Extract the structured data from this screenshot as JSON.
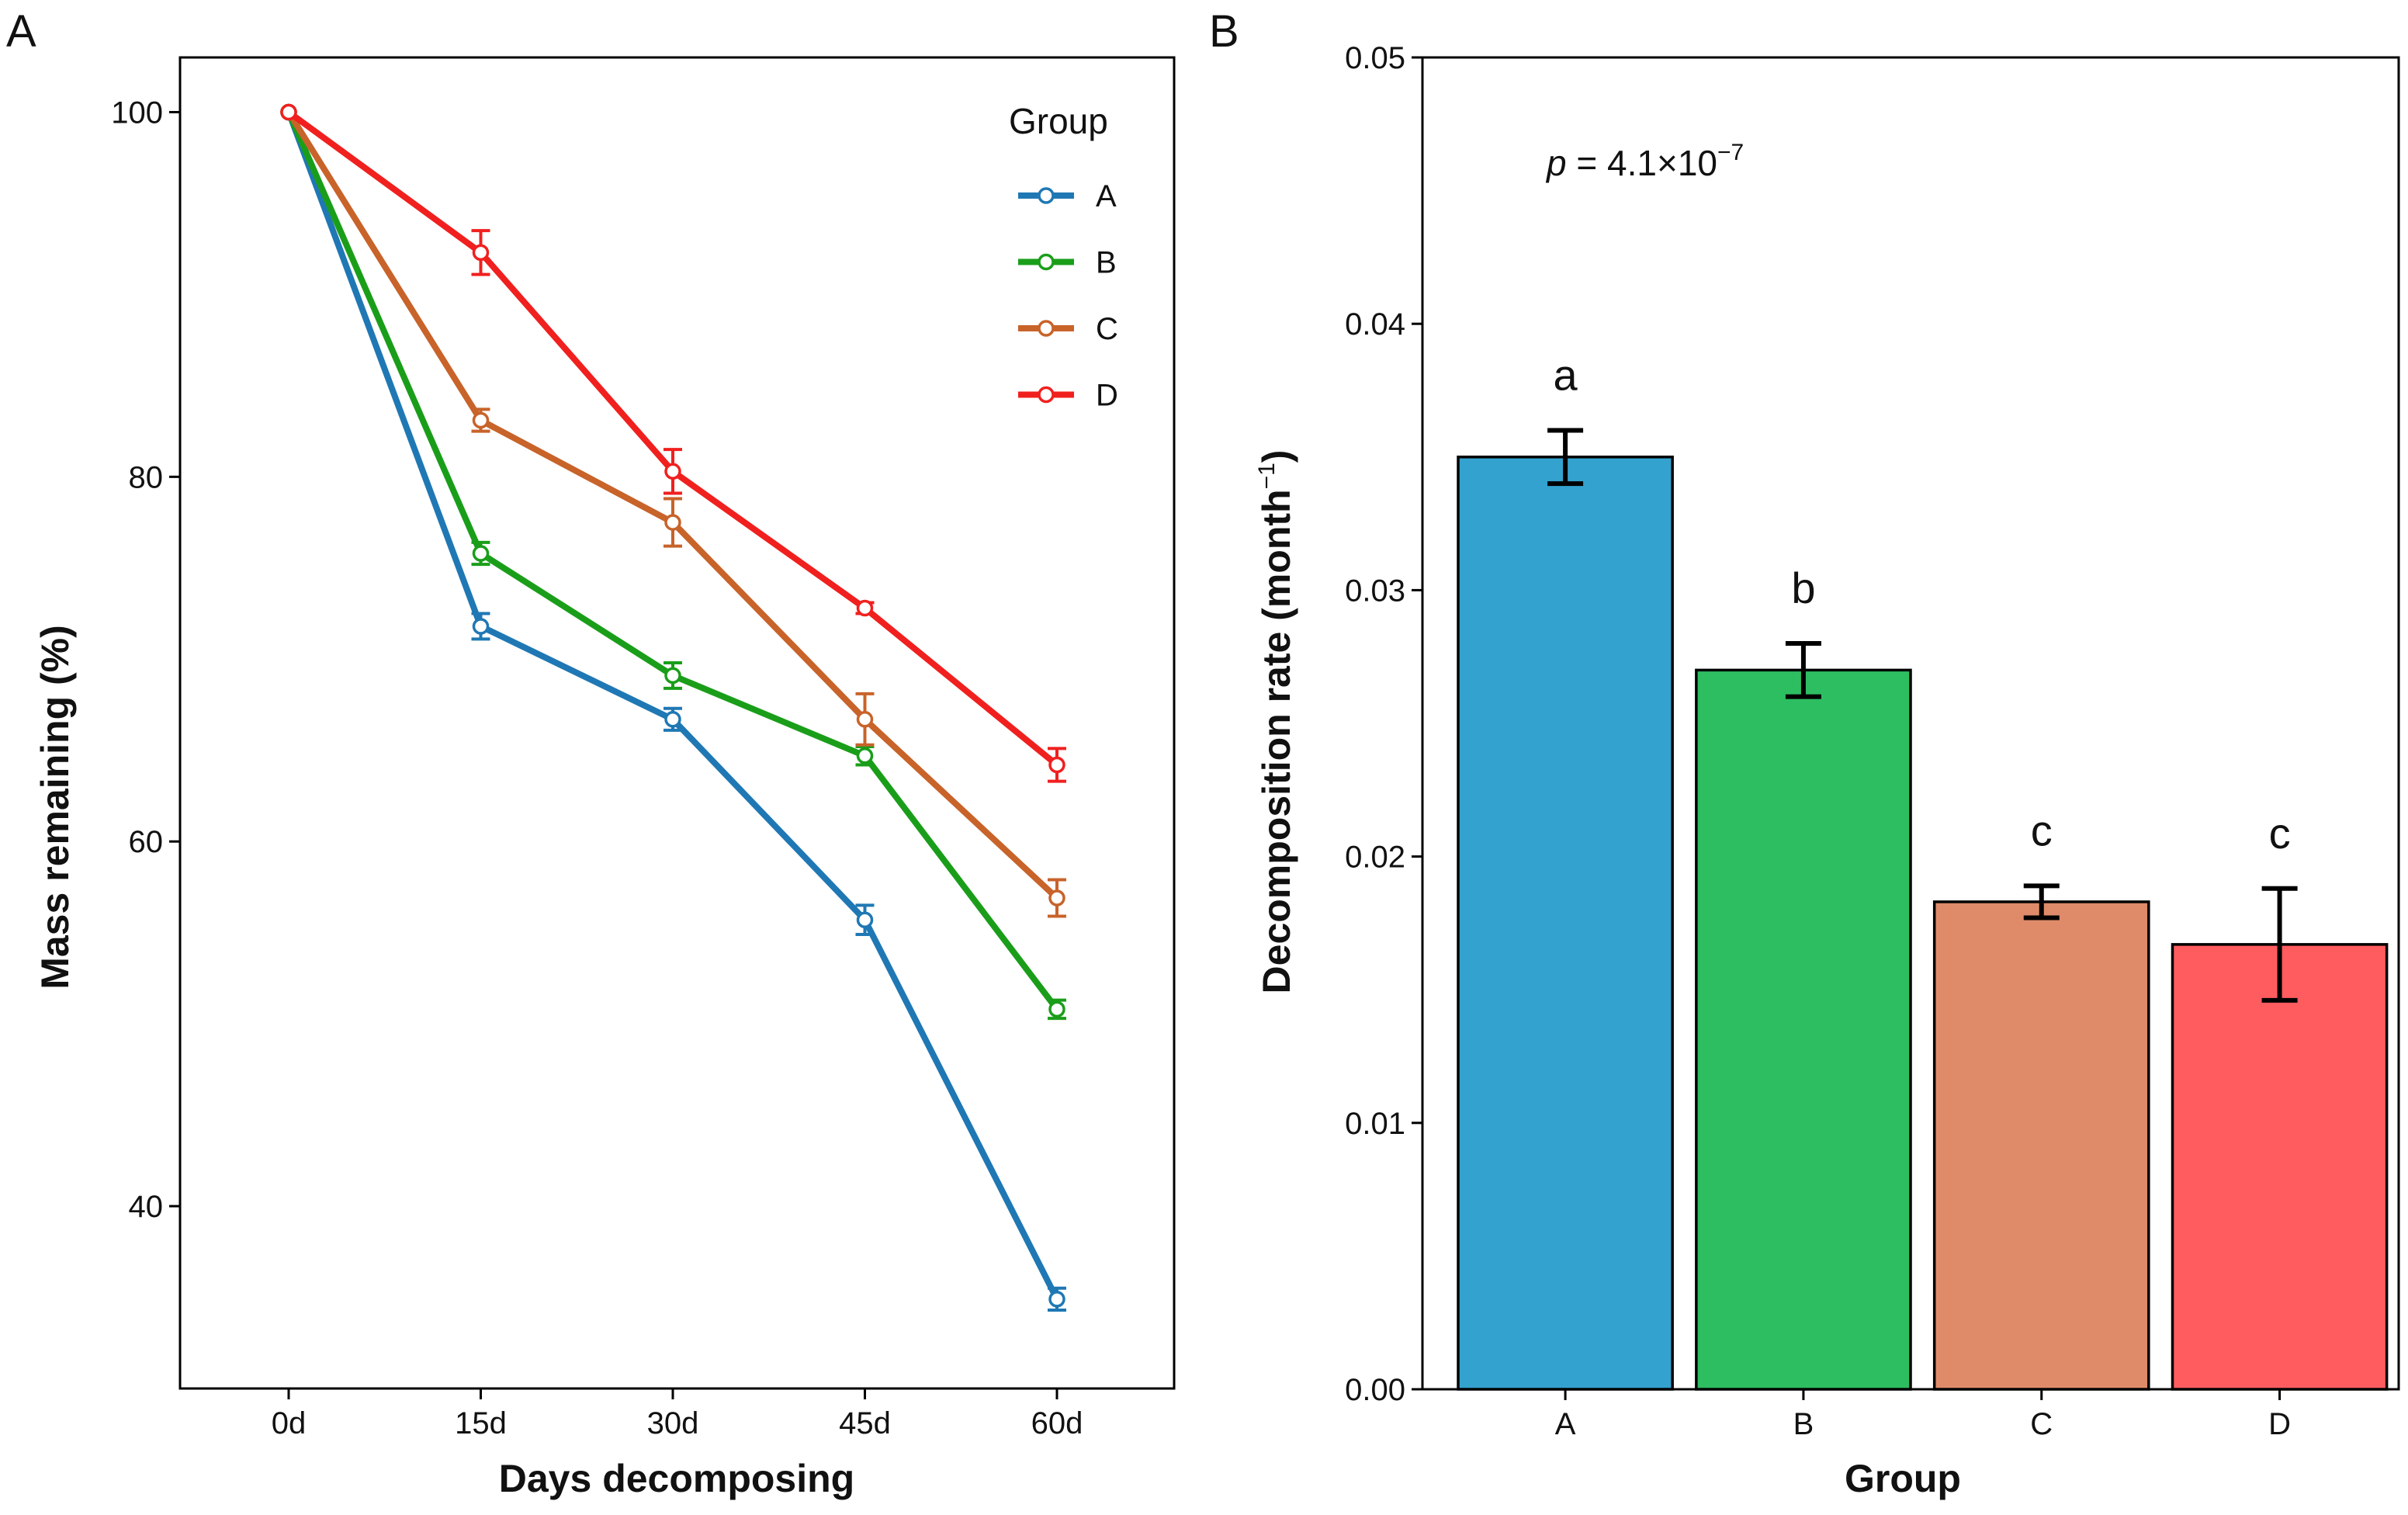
{
  "chart_data": [
    {
      "panel": "A",
      "type": "line",
      "xlabel": "Days decomposing",
      "ylabel": "Mass remaining (%)",
      "categories": [
        "0d",
        "15d",
        "30d",
        "45d",
        "60d"
      ],
      "ylim": [
        30,
        103
      ],
      "yticks": [
        40,
        60,
        80,
        100
      ],
      "grid": false,
      "legend": {
        "title": "Group",
        "placement": "top-right"
      },
      "series": [
        {
          "name": "A",
          "color": "#1F78B4",
          "values": [
            100,
            71.8,
            66.7,
            55.7,
            34.9
          ],
          "errors": [
            0,
            0.7,
            0.6,
            0.8,
            0.6
          ]
        },
        {
          "name": "B",
          "color": "#1A9E1A",
          "values": [
            100,
            75.8,
            69.1,
            64.7,
            50.8
          ],
          "errors": [
            0,
            0.6,
            0.7,
            0.5,
            0.5
          ]
        },
        {
          "name": "C",
          "color": "#C8632A",
          "values": [
            100,
            83.1,
            77.5,
            66.7,
            56.9
          ],
          "errors": [
            0,
            0.6,
            1.3,
            1.4,
            1.0
          ]
        },
        {
          "name": "D",
          "color": "#F0201F",
          "values": [
            100,
            92.3,
            80.3,
            72.8,
            64.2
          ],
          "errors": [
            0,
            1.2,
            1.2,
            0.3,
            0.9
          ]
        }
      ]
    },
    {
      "panel": "B",
      "type": "bar",
      "xlabel": "Group",
      "ylabel": "Decomposition rate (month",
      "ylabel_sup": "−1",
      "ylabel_close": ")",
      "categories": [
        "A",
        "B",
        "C",
        "D"
      ],
      "values": [
        0.035,
        0.027,
        0.0183,
        0.0167
      ],
      "errors": [
        0.001,
        0.001,
        0.0006,
        0.0021
      ],
      "letters": [
        "a",
        "b",
        "c",
        "c"
      ],
      "colors": [
        "#33A2CF",
        "#2EBE62",
        "#DF8B6A",
        "#FF5C5F"
      ],
      "ylim": [
        0,
        0.05
      ],
      "yticks": [
        "0.00",
        "0.01",
        "0.02",
        "0.03",
        "0.04",
        "0.05"
      ],
      "grid": false,
      "annotation": {
        "p_symbol": "p",
        "p_text": " = 4.1×10",
        "p_exp": "−7"
      }
    }
  ]
}
